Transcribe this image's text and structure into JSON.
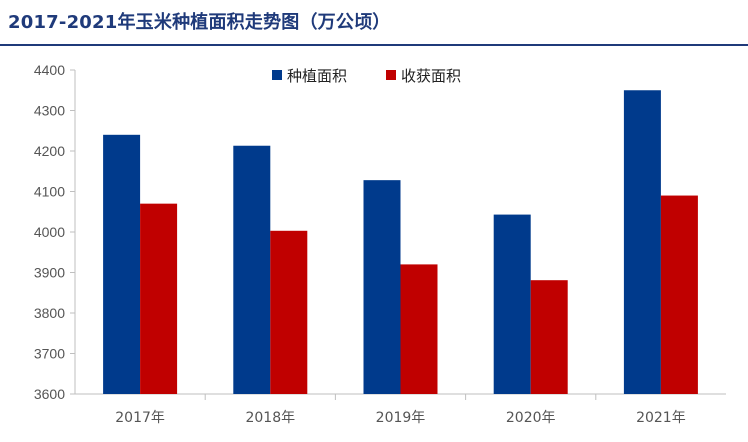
{
  "chart_data": {
    "type": "bar",
    "title": "2017-2021年玉米种植面积走势图（万公顷）",
    "categories": [
      "2017年",
      "2018年",
      "2019年",
      "2020年",
      "2021年"
    ],
    "series": [
      {
        "name": "种植面积",
        "color": "#003a8c",
        "values": [
          4240,
          4213,
          4128,
          4043,
          4350
        ]
      },
      {
        "name": "收获面积",
        "color": "#c00000",
        "values": [
          4070,
          4003,
          3920,
          3881,
          4090
        ]
      }
    ],
    "ylim": [
      3600,
      4400
    ],
    "yticks": [
      3600,
      3700,
      3800,
      3900,
      4000,
      4100,
      4200,
      4300,
      4400
    ],
    "grid": false,
    "legend": "top-center",
    "xlabel": "",
    "ylabel": ""
  }
}
